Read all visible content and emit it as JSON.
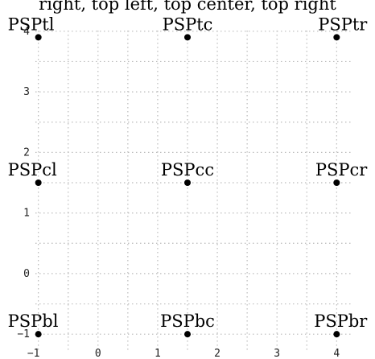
{
  "chart_data": {
    "type": "scatter",
    "title": "right, top left, top center, top right",
    "xlabel": "",
    "ylabel": "",
    "xlim": [
      -1.4,
      4.4
    ],
    "ylim": [
      -1.25,
      4.25
    ],
    "x_ticks": [
      -1,
      0,
      1,
      2,
      3,
      4
    ],
    "y_ticks": [
      -1,
      0,
      1,
      2,
      3,
      4
    ],
    "grid": true,
    "grid_style": "dotted",
    "marker_color": "#000000",
    "grid_color": "#bbbbbb",
    "points": [
      {
        "label": "PSPtl",
        "x": -1.0,
        "y": 3.9
      },
      {
        "label": "PSPtc",
        "x": 1.5,
        "y": 3.9
      },
      {
        "label": "PSPtr",
        "x": 4.0,
        "y": 3.9
      },
      {
        "label": "PSPcl",
        "x": -1.0,
        "y": 1.5
      },
      {
        "label": "PSPcc",
        "x": 1.5,
        "y": 1.5
      },
      {
        "label": "PSPcr",
        "x": 4.0,
        "y": 1.5
      },
      {
        "label": "PSPbl",
        "x": -1.0,
        "y": -1.0
      },
      {
        "label": "PSPbc",
        "x": 1.5,
        "y": -1.0
      },
      {
        "label": "PSPbr",
        "x": 4.0,
        "y": -1.0
      }
    ]
  }
}
